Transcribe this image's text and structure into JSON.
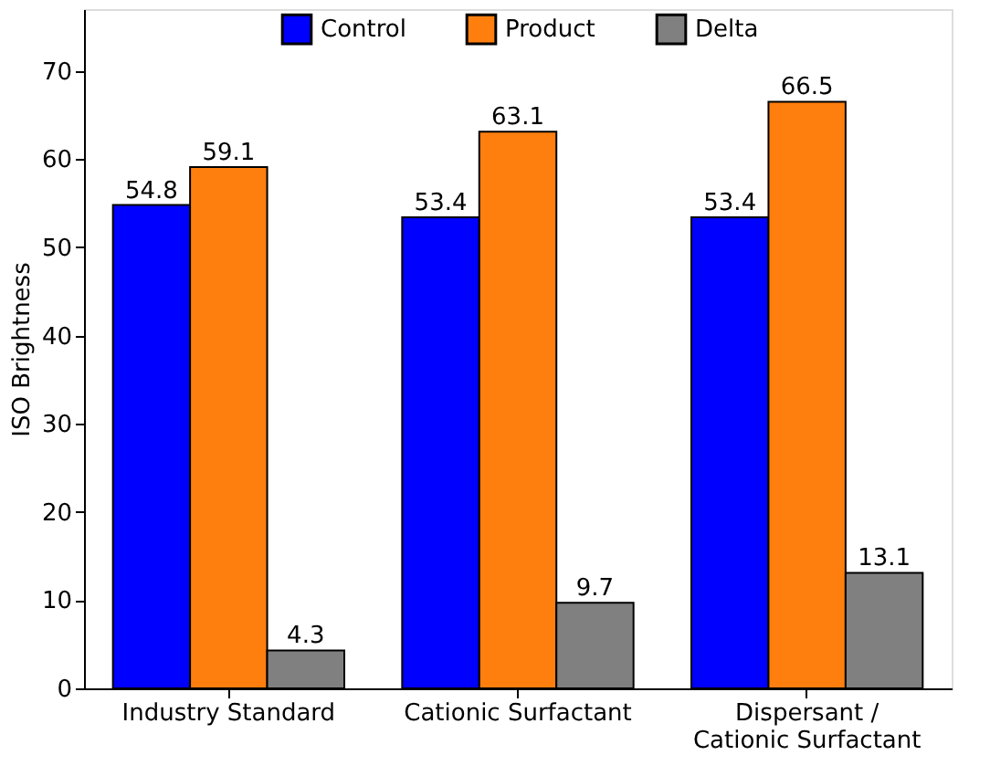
{
  "chart_data": {
    "type": "bar",
    "ylabel": "ISO Brightness",
    "categories": [
      "Industry Standard",
      "Cationic Surfactant",
      "Dispersant /\nCationic Surfactant"
    ],
    "series": [
      {
        "name": "Control",
        "color": "#0000ff",
        "values": [
          54.8,
          53.4,
          53.4
        ]
      },
      {
        "name": "Product",
        "color": "#ff7f0e",
        "values": [
          59.1,
          63.1,
          66.5
        ]
      },
      {
        "name": "Delta",
        "color": "#808080",
        "values": [
          4.3,
          9.7,
          13.1
        ]
      }
    ],
    "ylim": [
      0,
      77
    ],
    "yticks": [
      0,
      10,
      20,
      30,
      40,
      50,
      60,
      70
    ],
    "grid": false,
    "legend": "top",
    "data_labels": true
  }
}
